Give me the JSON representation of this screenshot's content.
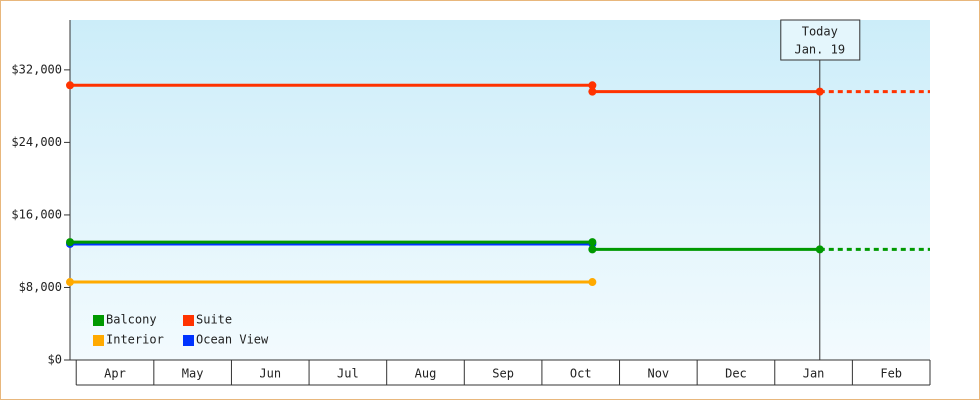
{
  "chart_data": {
    "type": "line",
    "step": true,
    "categories": [
      "Apr",
      "May",
      "Jun",
      "Jul",
      "Aug",
      "Sep",
      "Oct",
      "Nov",
      "Dec",
      "Jan",
      "Feb"
    ],
    "xlim": [
      -0.08,
      11
    ],
    "ylim": [
      0,
      37500
    ],
    "yticks": [
      {
        "value": 0,
        "label": "$0"
      },
      {
        "value": 8000,
        "label": "$8,000"
      },
      {
        "value": 16000,
        "label": "$16,000"
      },
      {
        "value": 24000,
        "label": "$24,000"
      },
      {
        "value": 32000,
        "label": "$32,000"
      }
    ],
    "series": [
      {
        "name": "Balcony",
        "color": "#009900",
        "x": [
          -0.08,
          6.65,
          6.65,
          9.58
        ],
        "values": [
          13000,
          13000,
          12200,
          12200
        ],
        "projected": true
      },
      {
        "name": "Suite",
        "color": "#ff3300",
        "x": [
          -0.08,
          6.65,
          6.65,
          9.58
        ],
        "values": [
          30300,
          30300,
          29600,
          29600
        ],
        "projected": true
      },
      {
        "name": "Interior",
        "color": "#ffaa00",
        "x": [
          -0.08,
          6.65
        ],
        "values": [
          8600,
          8600
        ],
        "projected": false
      },
      {
        "name": "Ocean View",
        "color": "#0033ff",
        "x": [
          -0.08,
          6.65
        ],
        "values": [
          12800,
          12800
        ],
        "projected": false
      }
    ],
    "today": {
      "x": 9.58,
      "label": "Today",
      "date": "Jan. 19"
    },
    "legend": "lower left"
  }
}
